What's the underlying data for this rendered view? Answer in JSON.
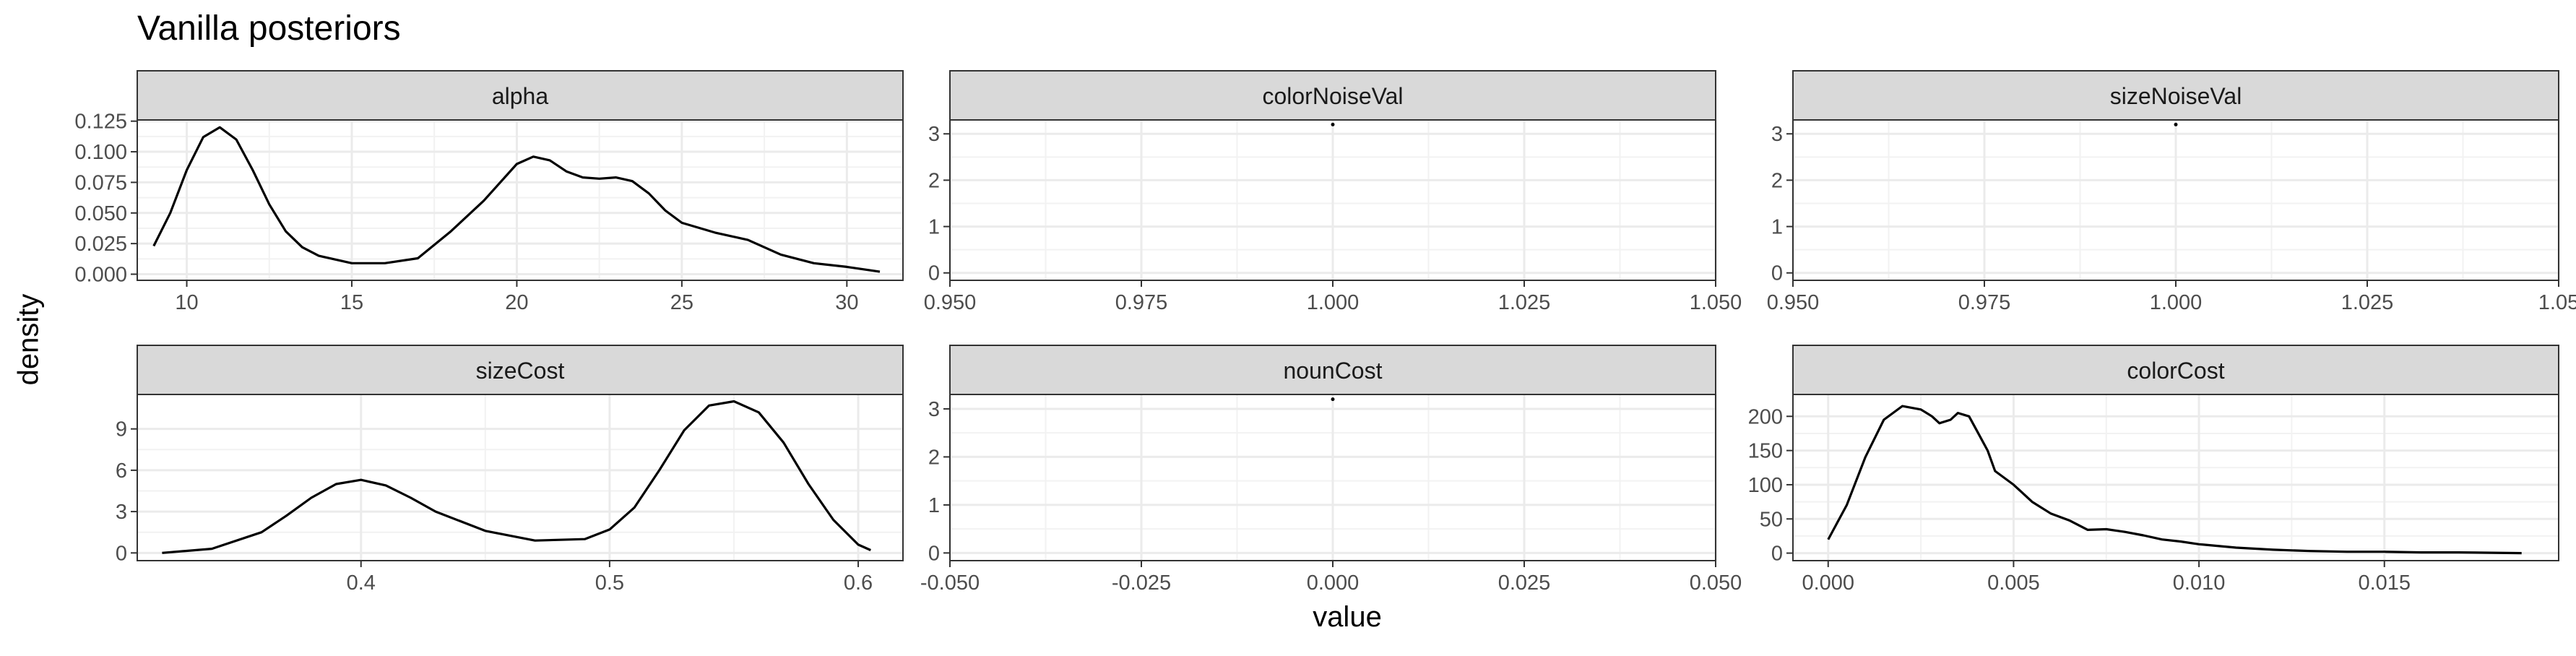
{
  "figure": {
    "title": "Vanilla posteriors",
    "xlabel": "value",
    "ylabel": "density"
  },
  "chart_data": [
    {
      "type": "line",
      "facet": "alpha",
      "xlim": [
        8.5,
        31.7
      ],
      "ylim": [
        -0.005,
        0.126
      ],
      "xticks": [
        10,
        15,
        20,
        25,
        30
      ],
      "xtick_labels": [
        "10",
        "15",
        "20",
        "25",
        "30"
      ],
      "yticks": [
        0,
        0.025,
        0.05,
        0.075,
        0.1,
        0.125
      ],
      "ytick_labels": [
        "0.000",
        "0.025",
        "0.050",
        "0.075",
        "0.100",
        "0.125"
      ],
      "x": [
        9.0,
        9.5,
        10.0,
        10.5,
        11.0,
        11.5,
        12.0,
        12.5,
        13.0,
        13.5,
        14.0,
        15.0,
        16.0,
        17.0,
        18.0,
        19.0,
        20.0,
        20.5,
        21.0,
        21.5,
        22.0,
        22.5,
        23.0,
        23.5,
        24.0,
        24.5,
        25.0,
        26.0,
        27.0,
        28.0,
        29.0,
        30.0,
        31.0
      ],
      "y": [
        0.023,
        0.05,
        0.085,
        0.112,
        0.12,
        0.11,
        0.085,
        0.057,
        0.035,
        0.022,
        0.015,
        0.009,
        0.009,
        0.013,
        0.035,
        0.06,
        0.09,
        0.096,
        0.093,
        0.084,
        0.079,
        0.078,
        0.079,
        0.076,
        0.066,
        0.052,
        0.042,
        0.034,
        0.028,
        0.016,
        0.009,
        0.006,
        0.002
      ]
    },
    {
      "type": "line",
      "facet": "colorNoiseVal",
      "xlim": [
        0.95,
        1.05
      ],
      "ylim": [
        -0.16,
        3.3
      ],
      "xticks": [
        0.95,
        0.975,
        1.0,
        1.025,
        1.05
      ],
      "xtick_labels": [
        "0.950",
        "0.975",
        "1.000",
        "1.025",
        "1.050"
      ],
      "yticks": [
        0,
        1,
        2,
        3
      ],
      "ytick_labels": [
        "0",
        "1",
        "2",
        "3"
      ],
      "x": [
        1.0
      ],
      "y": [
        3.2
      ]
    },
    {
      "type": "line",
      "facet": "sizeNoiseVal",
      "xlim": [
        0.95,
        1.05
      ],
      "ylim": [
        -0.16,
        3.3
      ],
      "xticks": [
        0.95,
        0.975,
        1.0,
        1.025,
        1.05
      ],
      "xtick_labels": [
        "0.950",
        "0.975",
        "1.000",
        "1.025",
        "1.05"
      ],
      "yticks": [
        0,
        1,
        2,
        3
      ],
      "ytick_labels": [
        "0",
        "1",
        "2",
        "3"
      ],
      "x": [
        1.0
      ],
      "y": [
        3.2
      ]
    },
    {
      "type": "line",
      "facet": "sizeCost",
      "xlim": [
        0.31,
        0.618
      ],
      "ylim": [
        -0.56,
        11.5
      ],
      "xticks": [
        0.4,
        0.5,
        0.6
      ],
      "xtick_labels": [
        "0.4",
        "0.5",
        "0.6"
      ],
      "yticks": [
        0,
        3,
        6,
        9
      ],
      "ytick_labels": [
        "0",
        "3",
        "6",
        "9"
      ],
      "x": [
        0.32,
        0.34,
        0.36,
        0.37,
        0.38,
        0.39,
        0.4,
        0.41,
        0.42,
        0.43,
        0.45,
        0.47,
        0.49,
        0.5,
        0.51,
        0.52,
        0.53,
        0.54,
        0.55,
        0.56,
        0.57,
        0.58,
        0.59,
        0.6,
        0.605
      ],
      "y": [
        0.0,
        0.3,
        1.5,
        2.7,
        4.0,
        5.0,
        5.3,
        4.9,
        4.0,
        3.0,
        1.6,
        0.9,
        1.0,
        1.7,
        3.3,
        6.0,
        8.9,
        10.7,
        11.0,
        10.2,
        8.0,
        5.0,
        2.4,
        0.6,
        0.2
      ]
    },
    {
      "type": "line",
      "facet": "nounCost",
      "xlim": [
        -0.05,
        0.05
      ],
      "ylim": [
        -0.16,
        3.3
      ],
      "xticks": [
        -0.05,
        -0.025,
        0.0,
        0.025,
        0.05
      ],
      "xtick_labels": [
        "-0.050",
        "-0.025",
        "0.000",
        "0.025",
        "0.050"
      ],
      "yticks": [
        0,
        1,
        2,
        3
      ],
      "ytick_labels": [
        "0",
        "1",
        "2",
        "3"
      ],
      "x": [
        0.0
      ],
      "y": [
        3.2
      ]
    },
    {
      "type": "line",
      "facet": "colorCost",
      "xlim": [
        -0.00095,
        0.0197
      ],
      "ylim": [
        -11,
        232
      ],
      "xticks": [
        0.0,
        0.005,
        0.01,
        0.015
      ],
      "xtick_labels": [
        "0.000",
        "0.005",
        "0.010",
        "0.015"
      ],
      "yticks": [
        0,
        50,
        100,
        150,
        200
      ],
      "ytick_labels": [
        "0",
        "50",
        "100",
        "150",
        "200"
      ],
      "x": [
        0.0,
        0.0005,
        0.001,
        0.0015,
        0.002,
        0.0025,
        0.0028,
        0.003,
        0.0033,
        0.0035,
        0.0038,
        0.004,
        0.0043,
        0.0045,
        0.005,
        0.0055,
        0.006,
        0.0065,
        0.007,
        0.0075,
        0.008,
        0.0085,
        0.009,
        0.0095,
        0.01,
        0.011,
        0.012,
        0.013,
        0.014,
        0.015,
        0.016,
        0.017,
        0.0187
      ],
      "y": [
        20,
        70,
        140,
        195,
        215,
        210,
        200,
        190,
        195,
        205,
        200,
        180,
        150,
        120,
        100,
        75,
        58,
        48,
        34,
        35,
        31,
        26,
        20,
        17,
        13,
        8,
        5,
        3,
        2,
        2,
        1,
        1,
        0
      ]
    }
  ]
}
